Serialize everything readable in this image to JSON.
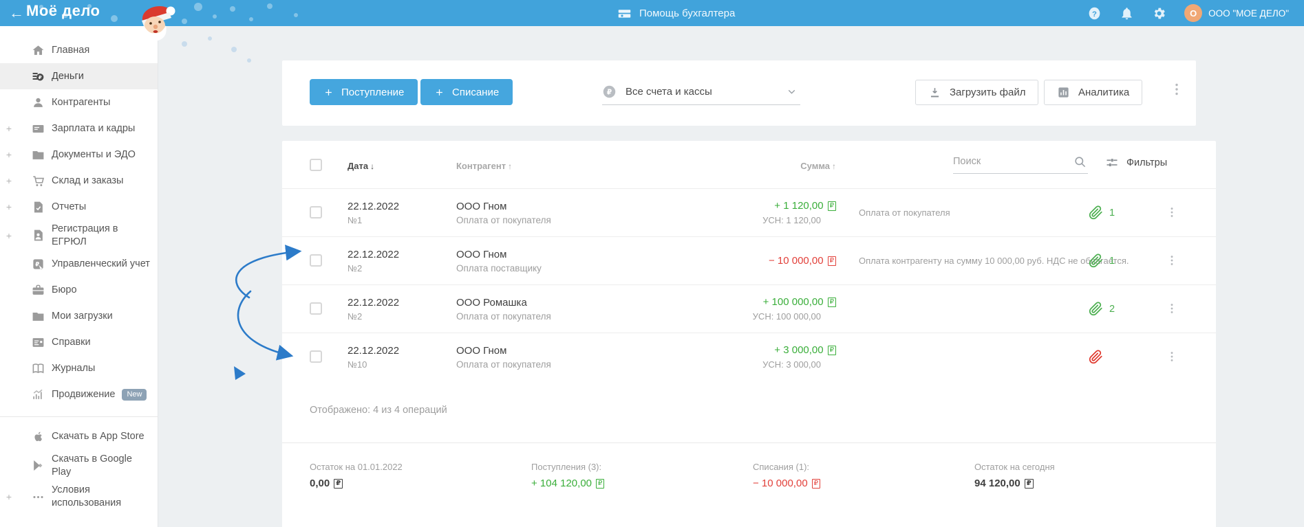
{
  "colors": {
    "topbar_blue": "#41a3db",
    "accent_button_blue": "#45a6de",
    "income_green": "#3aae3a",
    "expense_red": "#e2403a",
    "avatar_orange": "#f0a875",
    "annotation_blue": "#2c7bc9"
  },
  "header": {
    "back_icon": "←",
    "logo": "Моё дело",
    "help_label": "Помощь бухгалтера",
    "avatar_letter": "O",
    "account_name": "ООО \"МОЕ ДЕЛО\""
  },
  "sidebar": {
    "items": [
      {
        "label": "Главная",
        "icon": "home"
      },
      {
        "label": "Деньги",
        "icon": "money",
        "state": "active"
      },
      {
        "label": "Контрагенты",
        "icon": "users"
      },
      {
        "label": "Зарплата и кадры",
        "icon": "card",
        "expander": "+"
      },
      {
        "label": "Документы и ЭДО",
        "icon": "folder",
        "expander": "+"
      },
      {
        "label": "Склад и заказы",
        "icon": "cart",
        "expander": "+"
      },
      {
        "label": "Отчеты",
        "icon": "report",
        "expander": "+"
      },
      {
        "label": "Регистрация в ЕГРЮЛ",
        "icon": "registration",
        "expander": "+"
      },
      {
        "label": "Управленческий учет",
        "icon": "management"
      },
      {
        "label": "Бюро",
        "icon": "briefcase"
      },
      {
        "label": "Мои загрузки",
        "icon": "downloads"
      },
      {
        "label": "Справки",
        "icon": "list"
      },
      {
        "label": "Журналы",
        "icon": "journal"
      },
      {
        "label": "Продвижение",
        "icon": "promo",
        "badge": "New"
      }
    ],
    "footer_items": [
      {
        "label": "Скачать в App Store",
        "icon": "apple"
      },
      {
        "label": "Скачать в Google Play",
        "icon": "google-play"
      },
      {
        "label": "Условия использования",
        "icon": "ellipsis",
        "expander": "+"
      }
    ]
  },
  "toolbar": {
    "income_label": "Поступление",
    "writeoff_label": "Списание",
    "accounts_select": "Все счета и кассы",
    "upload_label": "Загрузить файл",
    "analytics_label": "Аналитика"
  },
  "table": {
    "date_label": "Дата",
    "date_sort": "↓",
    "counterparty_label": "Контрагент",
    "counterparty_sort": "↑",
    "amount_label": "Сумма",
    "amount_sort": "↑",
    "search_placeholder": "Поиск",
    "filters_label": "Фильтры",
    "rows": [
      {
        "date": "22.12.2022",
        "number": "№1",
        "counterparty": "ООО Гном",
        "operation": "Оплата от покупателя",
        "amount": "+ 1 120,00",
        "currency": "₽",
        "amount_sub": "УСН: 1 120,00",
        "type": "income",
        "comment": "Оплата от покупателя",
        "attachments": "1",
        "clip_color": "green"
      },
      {
        "date": "22.12.2022",
        "number": "№2",
        "counterparty": "ООО Гном",
        "operation": "Оплата поставщику",
        "amount": "− 10 000,00",
        "currency": "₽",
        "amount_sub": "",
        "type": "expense",
        "comment": "Оплата контрагенту на сумму 10 000,00 руб. НДС не облагается.",
        "attachments": "1",
        "clip_color": "green"
      },
      {
        "date": "22.12.2022",
        "number": "№2",
        "counterparty": "ООО Ромашка",
        "operation": "Оплата от покупателя",
        "amount": "+ 100 000,00",
        "currency": "₽",
        "amount_sub": "УСН: 100 000,00",
        "type": "income",
        "comment": "",
        "attachments": "2",
        "clip_color": "green"
      },
      {
        "date": "22.12.2022",
        "number": "№10",
        "counterparty": "ООО Гном",
        "operation": "Оплата от покупателя",
        "amount": "+ 3 000,00",
        "currency": "₽",
        "amount_sub": "УСН: 3 000,00",
        "type": "income",
        "comment": "",
        "attachments": "",
        "clip_color": "red"
      }
    ],
    "shown_text": "Отображено: 4 из 4 операций"
  },
  "summary": {
    "items": [
      {
        "label": "Остаток на 01.01.2022",
        "value": "0,00",
        "currency": "₽",
        "tone": "dark"
      },
      {
        "label": "Поступления (3):",
        "value": "+ 104 120,00",
        "currency": "₽",
        "tone": "green"
      },
      {
        "label": "Списания (1):",
        "value": "− 10 000,00",
        "currency": "₽",
        "tone": "red"
      },
      {
        "label": "Остаток на сегодня",
        "value": "94 120,00",
        "currency": "₽",
        "tone": "dark"
      }
    ]
  }
}
